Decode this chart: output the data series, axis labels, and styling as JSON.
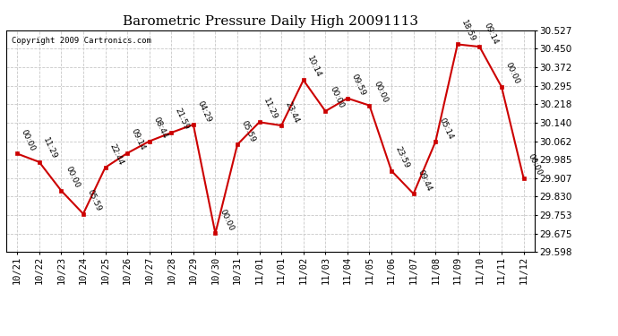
{
  "title": "Barometric Pressure Daily High 20091113",
  "copyright": "Copyright 2009 Cartronics.com",
  "x_labels": [
    "10/21",
    "10/22",
    "10/23",
    "10/24",
    "10/25",
    "10/26",
    "10/27",
    "10/28",
    "10/29",
    "10/30",
    "10/31",
    "11/01",
    "11/01",
    "11/02",
    "11/03",
    "11/04",
    "11/05",
    "11/06",
    "11/07",
    "11/08",
    "11/09",
    "11/10",
    "11/11",
    "11/12"
  ],
  "y_values": [
    30.01,
    29.975,
    29.855,
    29.758,
    29.952,
    30.012,
    30.062,
    30.098,
    30.132,
    29.676,
    30.048,
    30.142,
    30.128,
    30.318,
    30.188,
    30.242,
    30.212,
    29.938,
    29.842,
    30.06,
    30.468,
    30.458,
    30.29,
    29.908
  ],
  "annotations": [
    "00:00",
    "11:29",
    "00:00",
    "05:59",
    "22:44",
    "09:14",
    "08:44",
    "21:59",
    "04:29",
    "00:00",
    "05:59",
    "11:29",
    "23:44",
    "10:14",
    "00:00",
    "09:59",
    "00:00",
    "23:59",
    "09:44",
    "05:14",
    "18:59",
    "09:14",
    "00:00",
    "00:00"
  ],
  "ylim_min": 29.598,
  "ylim_max": 30.527,
  "yticks": [
    29.598,
    29.675,
    29.753,
    29.83,
    29.907,
    29.985,
    30.062,
    30.14,
    30.218,
    30.295,
    30.372,
    30.45,
    30.527
  ],
  "line_color": "#cc0000",
  "marker_color": "#cc0000",
  "bg_color": "#ffffff",
  "grid_color": "#c8c8c8",
  "title_fontsize": 11,
  "annotation_fontsize": 6.5,
  "tick_fontsize": 7.5,
  "copyright_fontsize": 6.5
}
